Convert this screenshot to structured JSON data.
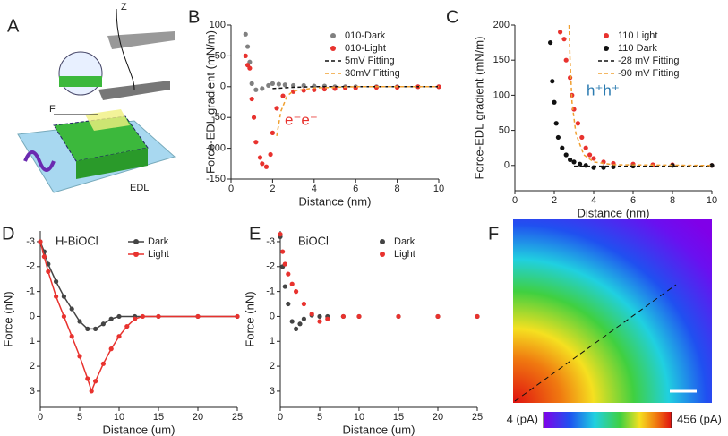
{
  "schematic": {
    "panel": "A",
    "labels": [
      "Z",
      "F",
      "EDL"
    ]
  },
  "chart_data": [
    {
      "type": "scatter",
      "panel": "B",
      "xlabel": "Distance (nm)",
      "ylabel": "Force-EDL gradient (mN/m)",
      "annotation": "e⁻e⁻",
      "xlim": [
        0,
        10
      ],
      "xticks": [
        0,
        2,
        4,
        6,
        8,
        10
      ],
      "ylim": [
        -150,
        100
      ],
      "yticks": [
        -150,
        -100,
        -50,
        0,
        50,
        100
      ],
      "series": [
        {
          "name": "010-Dark",
          "color": "#808080",
          "style": "markers",
          "x": [
            0.7,
            0.8,
            0.9,
            1.0,
            1.2,
            1.5,
            1.8,
            2.0,
            2.3,
            2.6,
            3.0,
            3.5,
            4.0,
            4.5,
            5.0,
            5.5,
            6.0,
            7.0,
            8.0,
            9.0,
            10.0
          ],
          "values": [
            85,
            65,
            40,
            5,
            -5,
            -3,
            2,
            5,
            4,
            3,
            2,
            2,
            1,
            1,
            0,
            0,
            0,
            0,
            0,
            0,
            0
          ]
        },
        {
          "name": "010-Light",
          "color": "#e8322e",
          "style": "markers",
          "x": [
            0.7,
            0.8,
            0.9,
            1.0,
            1.1,
            1.2,
            1.4,
            1.5,
            1.7,
            1.9,
            2.0,
            2.2,
            2.5,
            3.0,
            3.5,
            4.0,
            4.5,
            5.0,
            5.5,
            6.0,
            7.0,
            8.0,
            9.0,
            10.0
          ],
          "values": [
            50,
            35,
            30,
            -20,
            -50,
            -90,
            -115,
            -125,
            -130,
            -110,
            -75,
            -35,
            -15,
            -8,
            -6,
            -5,
            -4,
            -3,
            -2,
            -2,
            -1,
            -1,
            0,
            0
          ]
        },
        {
          "name": "5mV Fitting",
          "color": "#111111",
          "style": "dashed",
          "x": [
            2,
            3,
            4,
            6,
            8,
            10
          ],
          "values": [
            -3,
            -1,
            0,
            0,
            0,
            0
          ]
        },
        {
          "name": "30mV Fitting",
          "color": "#f0a030",
          "style": "dashed",
          "x": [
            2.2,
            2.4,
            2.7,
            3.0,
            4,
            6,
            10
          ],
          "values": [
            -80,
            -40,
            -15,
            -7,
            -2,
            0,
            0
          ]
        }
      ]
    },
    {
      "type": "scatter",
      "panel": "C",
      "xlabel": "Distance (nm)",
      "ylabel": "Force-EDL gradient (mN/m)",
      "annotation": "h⁺h⁺",
      "xlim": [
        0,
        10
      ],
      "xticks": [
        0,
        2,
        4,
        6,
        8,
        10
      ],
      "ylim": [
        -36,
        200
      ],
      "yticks": [
        0,
        50,
        100,
        150,
        200
      ],
      "series": [
        {
          "name": "110 Light",
          "color": "#e8322e",
          "style": "markers",
          "x": [
            2.3,
            2.5,
            2.6,
            2.8,
            2.9,
            3.0,
            3.2,
            3.4,
            3.6,
            3.8,
            4.0,
            4.5,
            5.0,
            6,
            7,
            8,
            10
          ],
          "values": [
            190,
            180,
            150,
            125,
            100,
            80,
            60,
            40,
            25,
            15,
            10,
            5,
            3,
            2,
            1,
            1,
            0
          ]
        },
        {
          "name": "110 Dark",
          "color": "#111111",
          "style": "markers",
          "x": [
            1.8,
            1.9,
            2.0,
            2.1,
            2.2,
            2.4,
            2.6,
            2.8,
            3.0,
            3.3,
            3.6,
            4.0,
            4.5,
            5,
            6,
            8,
            10
          ],
          "values": [
            175,
            120,
            90,
            60,
            40,
            25,
            15,
            8,
            5,
            2,
            0,
            -3,
            -3,
            -2,
            -1,
            0,
            0
          ]
        },
        {
          "name": "-28 mV Fitting",
          "color": "#111111",
          "style": "dashed",
          "x": [
            3,
            10
          ],
          "values": [
            -1,
            -1
          ]
        },
        {
          "name": "-90 mV Fitting",
          "color": "#f0a030",
          "style": "dashed",
          "x": [
            2.75,
            2.8,
            2.9,
            3.1,
            3.5,
            4,
            5,
            10
          ],
          "values": [
            200,
            150,
            90,
            45,
            15,
            5,
            1,
            0
          ]
        }
      ]
    },
    {
      "type": "scatter",
      "panel": "D",
      "title": "H-BiOCl",
      "xlabel": "Distance (um)",
      "ylabel": "Force (nN)",
      "xlim": [
        0,
        25
      ],
      "xticks": [
        0,
        5,
        10,
        15,
        20,
        25
      ],
      "ylim": [
        3.65,
        -3.43
      ],
      "yticks": [
        -3,
        -2,
        -1,
        0,
        1,
        2,
        3
      ],
      "series": [
        {
          "name": "Dark",
          "color": "#444444",
          "style": "line+markers",
          "x": [
            0,
            0.5,
            1,
            2,
            3,
            4,
            5,
            6,
            7,
            8,
            9,
            10,
            12,
            15,
            20,
            25
          ],
          "values": [
            -3,
            -2.6,
            -2.1,
            -1.4,
            -0.8,
            -0.3,
            0.2,
            0.5,
            0.5,
            0.3,
            0.1,
            0,
            0,
            0,
            0,
            0
          ]
        },
        {
          "name": "Light",
          "color": "#e8322e",
          "style": "line+markers",
          "x": [
            0,
            0.5,
            1,
            2,
            3,
            4,
            5,
            6,
            6.5,
            7,
            8,
            9,
            10,
            11,
            12,
            13,
            15,
            20,
            25
          ],
          "values": [
            -3,
            -2.4,
            -1.8,
            -0.8,
            0,
            0.8,
            1.6,
            2.5,
            3.0,
            2.6,
            1.9,
            1.3,
            0.8,
            0.4,
            0.1,
            0,
            0,
            0,
            0
          ]
        }
      ]
    },
    {
      "type": "scatter",
      "panel": "E",
      "title": "BiOCl",
      "xlabel": "Distance (um)",
      "ylabel": "Force (nN)",
      "xlim": [
        0,
        25
      ],
      "xticks": [
        0,
        5,
        10,
        15,
        20,
        25
      ],
      "ylim": [
        3.65,
        -3.43
      ],
      "yticks": [
        -3,
        -2,
        -1,
        0,
        1,
        2,
        3
      ],
      "series": [
        {
          "name": "Dark",
          "color": "#444444",
          "style": "markers",
          "x": [
            0,
            0.3,
            0.6,
            1,
            1.5,
            2,
            2.5,
            3,
            4,
            5,
            6,
            8,
            10,
            15,
            20,
            25
          ],
          "values": [
            -3.2,
            -2,
            -1.2,
            -0.5,
            0.2,
            0.5,
            0.3,
            0.1,
            -0.05,
            0,
            0,
            0,
            0,
            0,
            0,
            0
          ]
        },
        {
          "name": "Light",
          "color": "#e8322e",
          "style": "markers",
          "x": [
            0,
            0.3,
            0.6,
            1,
            1.5,
            2,
            3,
            4,
            5,
            6,
            8,
            10,
            15,
            20,
            25
          ],
          "values": [
            -3.3,
            -2.6,
            -2.1,
            -1.7,
            -1.3,
            -1,
            -0.5,
            -0.1,
            0.2,
            0.1,
            0,
            0,
            0,
            0,
            0
          ]
        }
      ]
    },
    {
      "type": "heatmap",
      "panel": "F",
      "colorbar_ticks": [
        {
          "value": 4,
          "label": "4 (pA)"
        },
        {
          "value": 456,
          "label": "456 (pA)"
        }
      ]
    }
  ]
}
